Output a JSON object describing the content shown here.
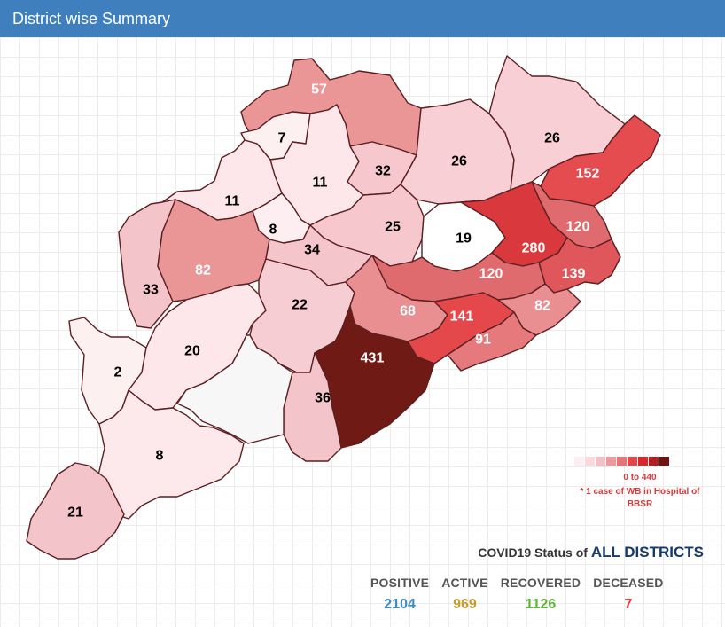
{
  "header": {
    "title": "District wise Summary"
  },
  "map": {
    "districts": [
      {
        "value": 57,
        "fill": "#ea9596",
        "label_color": "#ffffff"
      },
      {
        "value": 7,
        "fill": "#fdf0f1",
        "label_color": "#000000"
      },
      {
        "value": 11,
        "fill": "#fde7ea",
        "label_color": "#000000"
      },
      {
        "value": 32,
        "fill": "#f6c8cd",
        "label_color": "#000000"
      },
      {
        "value": 26,
        "fill": "#f7cfd4",
        "label_color": "#000000"
      },
      {
        "value": 26,
        "fill": "#f7cfd4",
        "label_color": "#000000"
      },
      {
        "value": 152,
        "fill": "#e54c4f",
        "label_color": "#ffffff"
      },
      {
        "value": 11,
        "fill": "#fde7ea",
        "label_color": "#000000"
      },
      {
        "value": 8,
        "fill": "#fdeff1",
        "label_color": "#000000"
      },
      {
        "value": 25,
        "fill": "#f6c8cd",
        "label_color": "#000000"
      },
      {
        "value": 19,
        "fill": "#ffffff",
        "label_color": "#000000"
      },
      {
        "value": 280,
        "fill": "#d9393d",
        "label_color": "#ffffff"
      },
      {
        "value": 120,
        "fill": "#e06b6e",
        "label_color": "#ffffff"
      },
      {
        "value": 33,
        "fill": "#f4c4cb",
        "label_color": "#000000"
      },
      {
        "value": 82,
        "fill": "#ea9596",
        "label_color": "#ffffff"
      },
      {
        "value": 34,
        "fill": "#f4c6cc",
        "label_color": "#000000"
      },
      {
        "value": 120,
        "fill": "#e06b6e",
        "label_color": "#ffffff"
      },
      {
        "value": 139,
        "fill": "#e0575b",
        "label_color": "#ffffff"
      },
      {
        "value": 22,
        "fill": "#f6cdd3",
        "label_color": "#000000"
      },
      {
        "value": 68,
        "fill": "#e98f91",
        "label_color": "#ffffff"
      },
      {
        "value": 141,
        "fill": "#e4484b",
        "label_color": "#ffffff"
      },
      {
        "value": 82,
        "fill": "#e98f91",
        "label_color": "#ffffff"
      },
      {
        "value": 91,
        "fill": "#e5797c",
        "label_color": "#ffffff"
      },
      {
        "value": 2,
        "fill": "#fdf0f1",
        "label_color": "#000000"
      },
      {
        "value": 20,
        "fill": "#fde7ea",
        "label_color": "#000000"
      },
      {
        "value": 431,
        "fill": "#701a16",
        "label_color": "#ffffff"
      },
      {
        "value": 36,
        "fill": "#f4c4cb",
        "label_color": "#000000"
      },
      {
        "value": 8,
        "fill": "#fde8ec",
        "label_color": "#000000"
      },
      {
        "value": 21,
        "fill": "#f4c4cb",
        "label_color": "#000000"
      },
      {
        "value": null,
        "fill": "#f7f7f7",
        "label_color": "#000000"
      }
    ]
  },
  "legend": {
    "colors": [
      "#fdeff1",
      "#f9d9dc",
      "#f4c0c5",
      "#ed9a9e",
      "#e57478",
      "#e4474b",
      "#d7282d",
      "#b11f22",
      "#6f1313"
    ],
    "range": "0 to 440",
    "note": "* 1 case of WB in Hospital of BBSR"
  },
  "status": {
    "prefix": "COVID19 Status of",
    "accent": "ALL DISTRICTS",
    "stats": [
      {
        "label": "POSITIVE",
        "value": "2104",
        "color": "#3c8cc6"
      },
      {
        "label": "ACTIVE",
        "value": "969",
        "color": "#c99a2e"
      },
      {
        "label": "RECOVERED",
        "value": "1126",
        "color": "#5fb33b"
      },
      {
        "label": "DECEASED",
        "value": "7",
        "color": "#e33d3d"
      }
    ]
  }
}
